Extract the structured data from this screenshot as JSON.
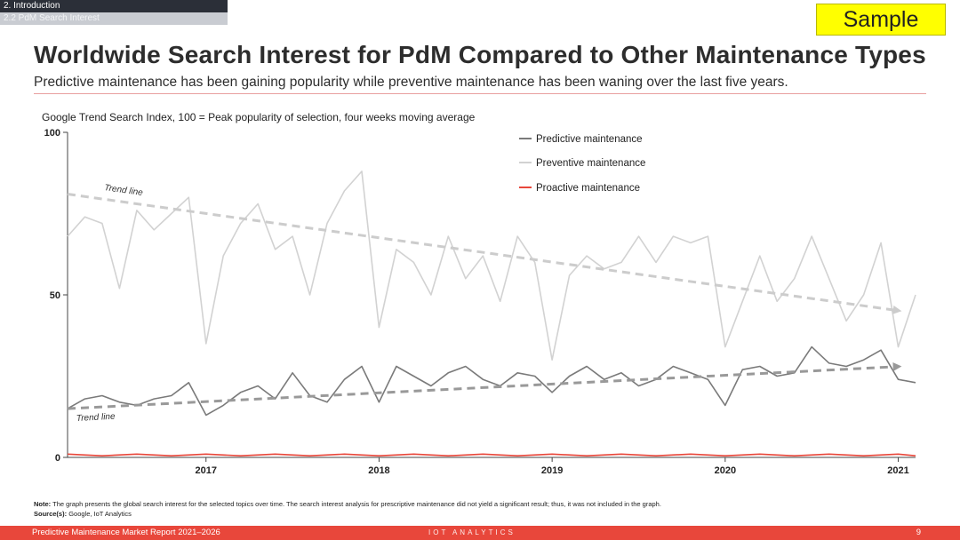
{
  "breadcrumb": {
    "section": "2. Introduction",
    "subsection": "2.2 PdM Search Interest"
  },
  "sample_label": "Sample",
  "title": "Worldwide Search Interest for PdM Compared to Other Maintenance Types",
  "subtitle": "Predictive maintenance has been gaining popularity while preventive maintenance has been waning over the last five years.",
  "chart_note": "Google Trend Search Index, 100 = Peak popularity of selection, four weeks moving average",
  "chart_data": {
    "type": "line",
    "xlabel": "",
    "ylabel": "",
    "x_ticks": [
      "2017",
      "2018",
      "2019",
      "2020",
      "2021"
    ],
    "x_tick_positions": [
      2017,
      2018,
      2019,
      2020,
      2021
    ],
    "xlim": [
      2016.2,
      2021.1
    ],
    "ylim": [
      0,
      100
    ],
    "y_ticks": [
      0,
      50,
      100
    ],
    "legend_position": "top-right",
    "colors": {
      "predictive": "#7a7a7a",
      "preventive": "#d2d2d2",
      "proactive": "#e8473b",
      "trend_predictive": "#999999",
      "trend_preventive": "#cccccc"
    },
    "series": [
      {
        "name": "Predictive maintenance",
        "x": [
          2016.2,
          2016.3,
          2016.4,
          2016.5,
          2016.6,
          2016.7,
          2016.8,
          2016.9,
          2017.0,
          2017.1,
          2017.2,
          2017.3,
          2017.4,
          2017.5,
          2017.6,
          2017.7,
          2017.8,
          2017.9,
          2018.0,
          2018.1,
          2018.2,
          2018.3,
          2018.4,
          2018.5,
          2018.6,
          2018.7,
          2018.8,
          2018.9,
          2019.0,
          2019.1,
          2019.2,
          2019.3,
          2019.4,
          2019.5,
          2019.6,
          2019.7,
          2019.8,
          2019.9,
          2020.0,
          2020.1,
          2020.2,
          2020.3,
          2020.4,
          2020.5,
          2020.6,
          2020.7,
          2020.8,
          2020.9,
          2021.0,
          2021.1
        ],
        "y": [
          15,
          18,
          19,
          17,
          16,
          18,
          19,
          23,
          13,
          16,
          20,
          22,
          18,
          26,
          19,
          17,
          24,
          28,
          17,
          28,
          25,
          22,
          26,
          28,
          24,
          22,
          26,
          25,
          20,
          25,
          28,
          24,
          26,
          22,
          24,
          28,
          26,
          24,
          16,
          27,
          28,
          25,
          26,
          34,
          29,
          28,
          30,
          33,
          24,
          23
        ]
      },
      {
        "name": "Preventive maintenance",
        "x": [
          2016.2,
          2016.3,
          2016.4,
          2016.5,
          2016.6,
          2016.7,
          2016.8,
          2016.9,
          2017.0,
          2017.1,
          2017.2,
          2017.3,
          2017.4,
          2017.5,
          2017.6,
          2017.7,
          2017.8,
          2017.9,
          2018.0,
          2018.1,
          2018.2,
          2018.3,
          2018.4,
          2018.5,
          2018.6,
          2018.7,
          2018.8,
          2018.9,
          2019.0,
          2019.1,
          2019.2,
          2019.3,
          2019.4,
          2019.5,
          2019.6,
          2019.7,
          2019.8,
          2019.9,
          2020.0,
          2020.1,
          2020.2,
          2020.3,
          2020.4,
          2020.5,
          2020.6,
          2020.7,
          2020.8,
          2020.9,
          2021.0,
          2021.1
        ],
        "y": [
          68,
          74,
          72,
          52,
          76,
          70,
          75,
          80,
          35,
          62,
          72,
          78,
          64,
          68,
          50,
          72,
          82,
          88,
          40,
          64,
          60,
          50,
          68,
          55,
          62,
          48,
          68,
          60,
          30,
          56,
          62,
          58,
          60,
          68,
          60,
          68,
          66,
          68,
          34,
          48,
          62,
          48,
          55,
          68,
          55,
          42,
          50,
          66,
          34,
          50
        ]
      },
      {
        "name": "Proactive maintenance",
        "x": [
          2016.2,
          2016.4,
          2016.6,
          2016.8,
          2017.0,
          2017.2,
          2017.4,
          2017.6,
          2017.8,
          2018.0,
          2018.2,
          2018.4,
          2018.6,
          2018.8,
          2019.0,
          2019.2,
          2019.4,
          2019.6,
          2019.8,
          2020.0,
          2020.2,
          2020.4,
          2020.6,
          2020.8,
          2021.0,
          2021.1
        ],
        "y": [
          1,
          0.5,
          1,
          0.5,
          1,
          0.5,
          1,
          0.5,
          1,
          0.5,
          1,
          0.5,
          1,
          0.5,
          1,
          0.5,
          1,
          0.5,
          1,
          0.5,
          1,
          0.5,
          1,
          0.5,
          1,
          0.5
        ]
      }
    ],
    "trend_lines": [
      {
        "series": "Preventive maintenance",
        "label": "Trend line",
        "x": [
          2016.2,
          2021.02
        ],
        "y": [
          81,
          45
        ]
      },
      {
        "series": "Predictive maintenance",
        "label": "Trend line",
        "x": [
          2016.2,
          2021.02
        ],
        "y": [
          15,
          28
        ]
      }
    ]
  },
  "footnote": {
    "note_label": "Note:",
    "note_text": "The graph presents the global search interest for the selected topics over time. The search interest analysis for prescriptive maintenance did not yield a significant result; thus, it was not included in the graph.",
    "source_label": "Source(s):",
    "source_text": "Google, IoT Analytics"
  },
  "footer": {
    "report": "Predictive Maintenance Market Report 2021–2026",
    "brand": "IOT ANALYTICS",
    "page": "9"
  }
}
